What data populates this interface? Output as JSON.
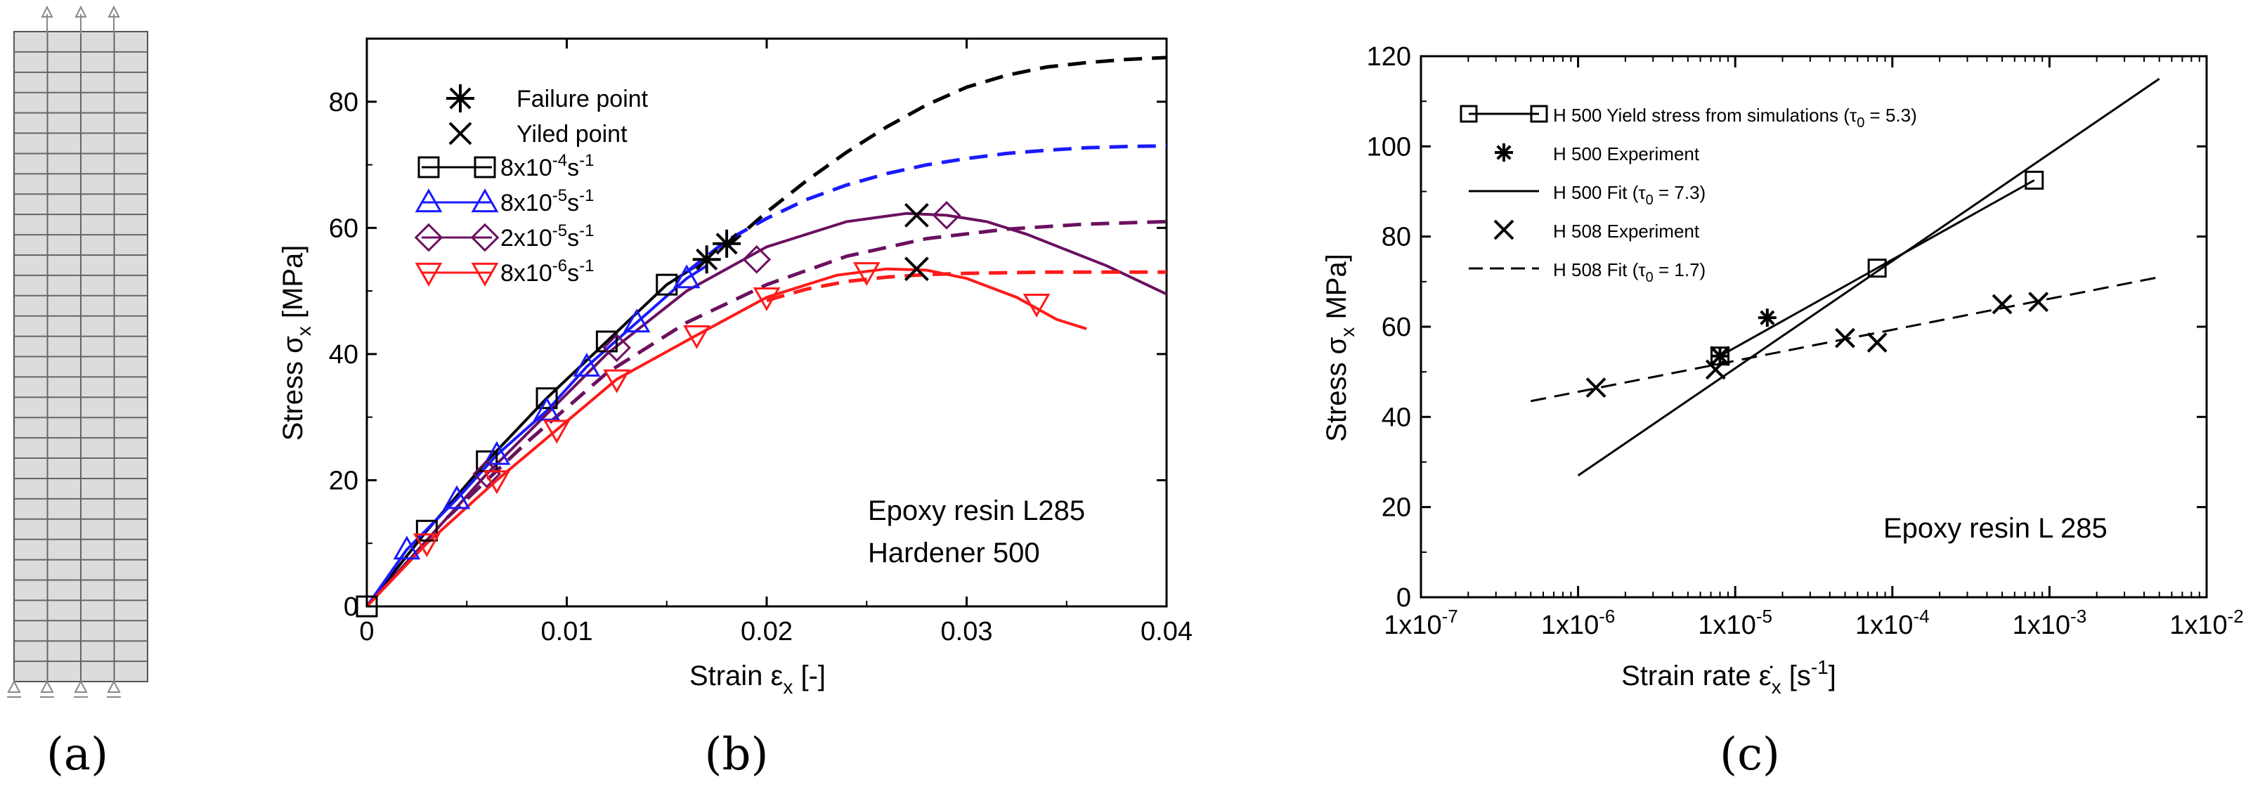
{
  "panels": {
    "a": {
      "label": "(a)"
    },
    "b": {
      "label": "(b)"
    },
    "c": {
      "label": "(c)"
    }
  },
  "chart_data": [
    {
      "id": "b",
      "type": "line",
      "xlim": [
        0,
        0.04
      ],
      "ylim": [
        0,
        90
      ],
      "xticks": [
        "0",
        "0.01",
        "0.02",
        "0.03",
        "0.04"
      ],
      "yticks": [
        "0",
        "20",
        "40",
        "60",
        "80"
      ],
      "xlabel": "Strain ε",
      "xlabel_sub": "x",
      "xlabel_suffix": " [-]",
      "ylabel": "Stress σ",
      "ylabel_sub": "x",
      "ylabel_suffix": " [MPa]",
      "annotations": [
        "Epoxy resin L285",
        "Hardener 500"
      ],
      "legend": [
        {
          "marker": "asterisk",
          "text": "Failure point"
        },
        {
          "marker": "x",
          "text": "Yiled point"
        },
        {
          "marker": "square",
          "color": "#000000",
          "base": "8x10",
          "exp": "-4",
          "unit": "s",
          "unit_exp": "-1"
        },
        {
          "marker": "triangle-up",
          "color": "#1a1aff",
          "base": "8x10",
          "exp": "-5",
          "unit": "s",
          "unit_exp": "-1"
        },
        {
          "marker": "diamond",
          "color": "#6b1060",
          "base": "2x10",
          "exp": "-5",
          "unit": "s",
          "unit_exp": "-1"
        },
        {
          "marker": "triangle-down",
          "color": "#ff1a1a",
          "base": "8x10",
          "exp": "-6",
          "unit": "s",
          "unit_exp": "-1"
        }
      ],
      "series": [
        {
          "name": "8x10^-4 s^-1 simulation",
          "color": "#000000",
          "style": "solid",
          "marker": "square",
          "x": [
            0,
            0.003,
            0.006,
            0.009,
            0.012,
            0.015,
            0.017
          ],
          "y": [
            0,
            12,
            23,
            33,
            42,
            51,
            55
          ],
          "markers_x": [
            0.003,
            0.006,
            0.009,
            0.012,
            0.015
          ],
          "markers_y": [
            12,
            23,
            33,
            42,
            51
          ]
        },
        {
          "name": "8x10^-4 s^-1 fit",
          "color": "#000000",
          "style": "dashed",
          "x": [
            0.018,
            0.02,
            0.022,
            0.024,
            0.026,
            0.028,
            0.03,
            0.032,
            0.034,
            0.036,
            0.038,
            0.04
          ],
          "y": [
            57,
            62.5,
            67.5,
            72,
            76,
            79.5,
            82.3,
            84.2,
            85.5,
            86.2,
            86.7,
            87
          ]
        },
        {
          "name": "8x10^-5 s^-1 simulation",
          "color": "#1a1aff",
          "style": "solid",
          "marker": "triangle-up",
          "x": [
            0,
            0.002,
            0.0045,
            0.0065,
            0.009,
            0.011,
            0.0135,
            0.016,
            0.017
          ],
          "y": [
            0,
            9,
            17,
            24,
            31,
            38,
            45,
            52,
            54
          ],
          "markers_x": [
            0.002,
            0.0045,
            0.0065,
            0.009,
            0.011,
            0.0135,
            0.016
          ],
          "markers_y": [
            9,
            17,
            24,
            31,
            38,
            45,
            52
          ]
        },
        {
          "name": "8x10^-5 s^-1 fit",
          "color": "#1a1aff",
          "style": "dashed",
          "x": [
            0.016,
            0.018,
            0.02,
            0.022,
            0.024,
            0.026,
            0.028,
            0.03,
            0.032,
            0.034,
            0.036,
            0.038,
            0.04
          ],
          "y": [
            53,
            58,
            61.5,
            64.5,
            66.8,
            68.6,
            70,
            71,
            71.8,
            72.3,
            72.7,
            72.9,
            73
          ]
        },
        {
          "name": "2x10^-5 s^-1 simulation",
          "color": "#6b1060",
          "style": "solid",
          "marker": "diamond",
          "x": [
            0,
            0.006,
            0.012,
            0.016,
            0.02,
            0.024,
            0.027,
            0.029,
            0.031,
            0.033,
            0.035,
            0.037,
            0.039,
            0.04
          ],
          "y": [
            0,
            21,
            40,
            50,
            57,
            61,
            62.3,
            62,
            61,
            59,
            56.5,
            54,
            51,
            49.5
          ],
          "markers_x": [
            0.006,
            0.0125,
            0.0195,
            0.029
          ],
          "markers_y": [
            21,
            41,
            55,
            62
          ]
        },
        {
          "name": "2x10^-5 s^-1 fit",
          "color": "#6b1060",
          "style": "dashed",
          "x": [
            0.004,
            0.008,
            0.012,
            0.016,
            0.02,
            0.024,
            0.028,
            0.032,
            0.036,
            0.04
          ],
          "y": [
            14,
            26,
            37,
            45,
            51,
            55.5,
            58.3,
            59.8,
            60.6,
            61
          ]
        },
        {
          "name": "8x10^-6 s^-1 simulation",
          "color": "#ff1a1a",
          "style": "solid",
          "marker": "triangle-down",
          "x": [
            0,
            0.003,
            0.0065,
            0.0095,
            0.0125,
            0.0165,
            0.02,
            0.0235,
            0.026,
            0.028,
            0.03,
            0.0325,
            0.0345,
            0.036
          ],
          "y": [
            0,
            10,
            20,
            28,
            36,
            43,
            49,
            52.5,
            53.5,
            53.3,
            52,
            49,
            45.5,
            44
          ],
          "markers_x": [
            0.003,
            0.0065,
            0.0095,
            0.0125,
            0.0165,
            0.02,
            0.025,
            0.0335
          ],
          "markers_y": [
            10,
            20,
            28,
            36,
            43,
            49,
            53,
            48
          ]
        },
        {
          "name": "8x10^-6 s^-1 fit",
          "color": "#ff1a1a",
          "style": "dashed",
          "x": [
            0.02,
            0.022,
            0.024,
            0.026,
            0.028,
            0.03,
            0.032,
            0.034,
            0.036,
            0.038,
            0.04
          ],
          "y": [
            48.5,
            50.3,
            51.5,
            52.2,
            52.6,
            52.8,
            52.9,
            53,
            53,
            53,
            53
          ]
        }
      ],
      "failure_points": {
        "x": [
          0.017,
          0.018
        ],
        "y": [
          55,
          57.5
        ]
      },
      "yield_points": {
        "x": [
          0.0275,
          0.0275
        ],
        "y": [
          62,
          53.5
        ]
      }
    },
    {
      "id": "c",
      "type": "line",
      "xscale": "log",
      "xlim": [
        1e-07,
        0.01
      ],
      "ylim": [
        0,
        120
      ],
      "xticks": [
        {
          "base": "1x10",
          "exp": "-7"
        },
        {
          "base": "1x10",
          "exp": "-6"
        },
        {
          "base": "1x10",
          "exp": "-5"
        },
        {
          "base": "1x10",
          "exp": "-4"
        },
        {
          "base": "1x10",
          "exp": "-3"
        },
        {
          "base": "1x10",
          "exp": "-2"
        }
      ],
      "yticks": [
        "0",
        "20",
        "40",
        "60",
        "80",
        "100",
        "120"
      ],
      "xlabel": "Strain rate ε̇",
      "xlabel_sub": "x",
      "xlabel_suffix": " [s",
      "xlabel_sup": "-1",
      "xlabel_end": "]",
      "ylabel": "Stress σ",
      "ylabel_sub": "x",
      "ylabel_suffix": " MPa]",
      "annotations": [
        "Epoxy resin L 285"
      ],
      "legend": [
        {
          "marker": "square-line",
          "text": "H 500 Yield stress from simulations (τ",
          "sub": "0",
          "tail": " = 5.3)"
        },
        {
          "marker": "asterisk",
          "text": "H 500 Experiment"
        },
        {
          "marker": "solid-line",
          "text": "H 500 Fit  (τ",
          "sub": "0",
          "tail": " = 7.3)"
        },
        {
          "marker": "x",
          "text": "H 508 Experiment"
        },
        {
          "marker": "dashed-line",
          "text": "H 508 Fit  (τ",
          "sub": "0",
          "tail": " = 1.7)"
        }
      ],
      "series": [
        {
          "name": "H 500 Yield stress from simulations",
          "style": "solid",
          "marker": "square",
          "x": [
            8e-06,
            8e-05,
            0.0008
          ],
          "y": [
            53.5,
            73,
            92.5
          ]
        },
        {
          "name": "H 500 Experiment",
          "style": "none",
          "marker": "asterisk",
          "x": [
            8e-06,
            1.6e-05
          ],
          "y": [
            53.5,
            62
          ]
        },
        {
          "name": "H 500 Fit",
          "style": "solid",
          "x": [
            1e-06,
            0.005
          ],
          "y": [
            27,
            115
          ]
        },
        {
          "name": "H 508 Experiment",
          "style": "none",
          "marker": "x",
          "x": [
            1.3e-06,
            7.5e-06,
            8e-06,
            5e-05,
            8e-05,
            0.0005,
            0.00085
          ],
          "y": [
            46.5,
            50.5,
            53.5,
            57.5,
            56.5,
            65,
            65.5
          ]
        },
        {
          "name": "H 508 Fit",
          "style": "dashed",
          "x": [
            5e-07,
            0.005
          ],
          "y": [
            43.5,
            71
          ]
        }
      ]
    }
  ]
}
